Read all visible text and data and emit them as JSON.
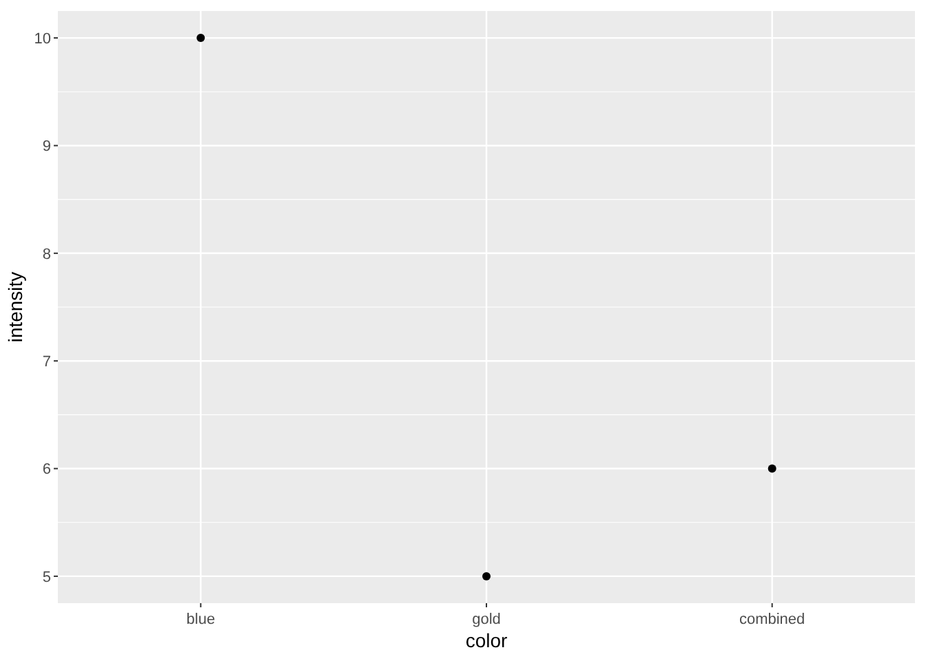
{
  "chart_data": {
    "type": "scatter",
    "xlabel": "color",
    "ylabel": "intensity",
    "categories": [
      "blue",
      "gold",
      "combined"
    ],
    "values": [
      10,
      5,
      6
    ],
    "color": "#000000",
    "ylim": [
      4.75,
      10.25
    ],
    "yticks": [
      5,
      6,
      7,
      8,
      9,
      10
    ],
    "grid": true,
    "marker": "circle"
  }
}
